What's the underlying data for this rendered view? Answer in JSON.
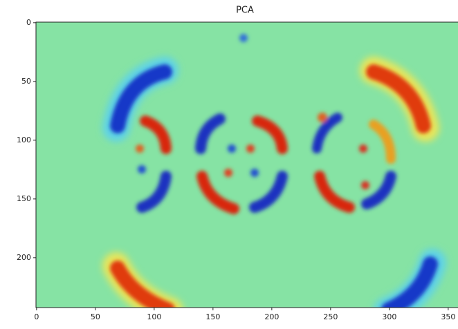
{
  "chart_data": {
    "type": "image",
    "title": "PCA",
    "xlim": [
      -0.5,
      359.5
    ],
    "ylim": [
      241.5,
      -0.5
    ],
    "xticks": [
      0,
      50,
      100,
      150,
      200,
      250,
      300,
      350
    ],
    "yticks": [
      0,
      50,
      100,
      150,
      200
    ]
  }
}
